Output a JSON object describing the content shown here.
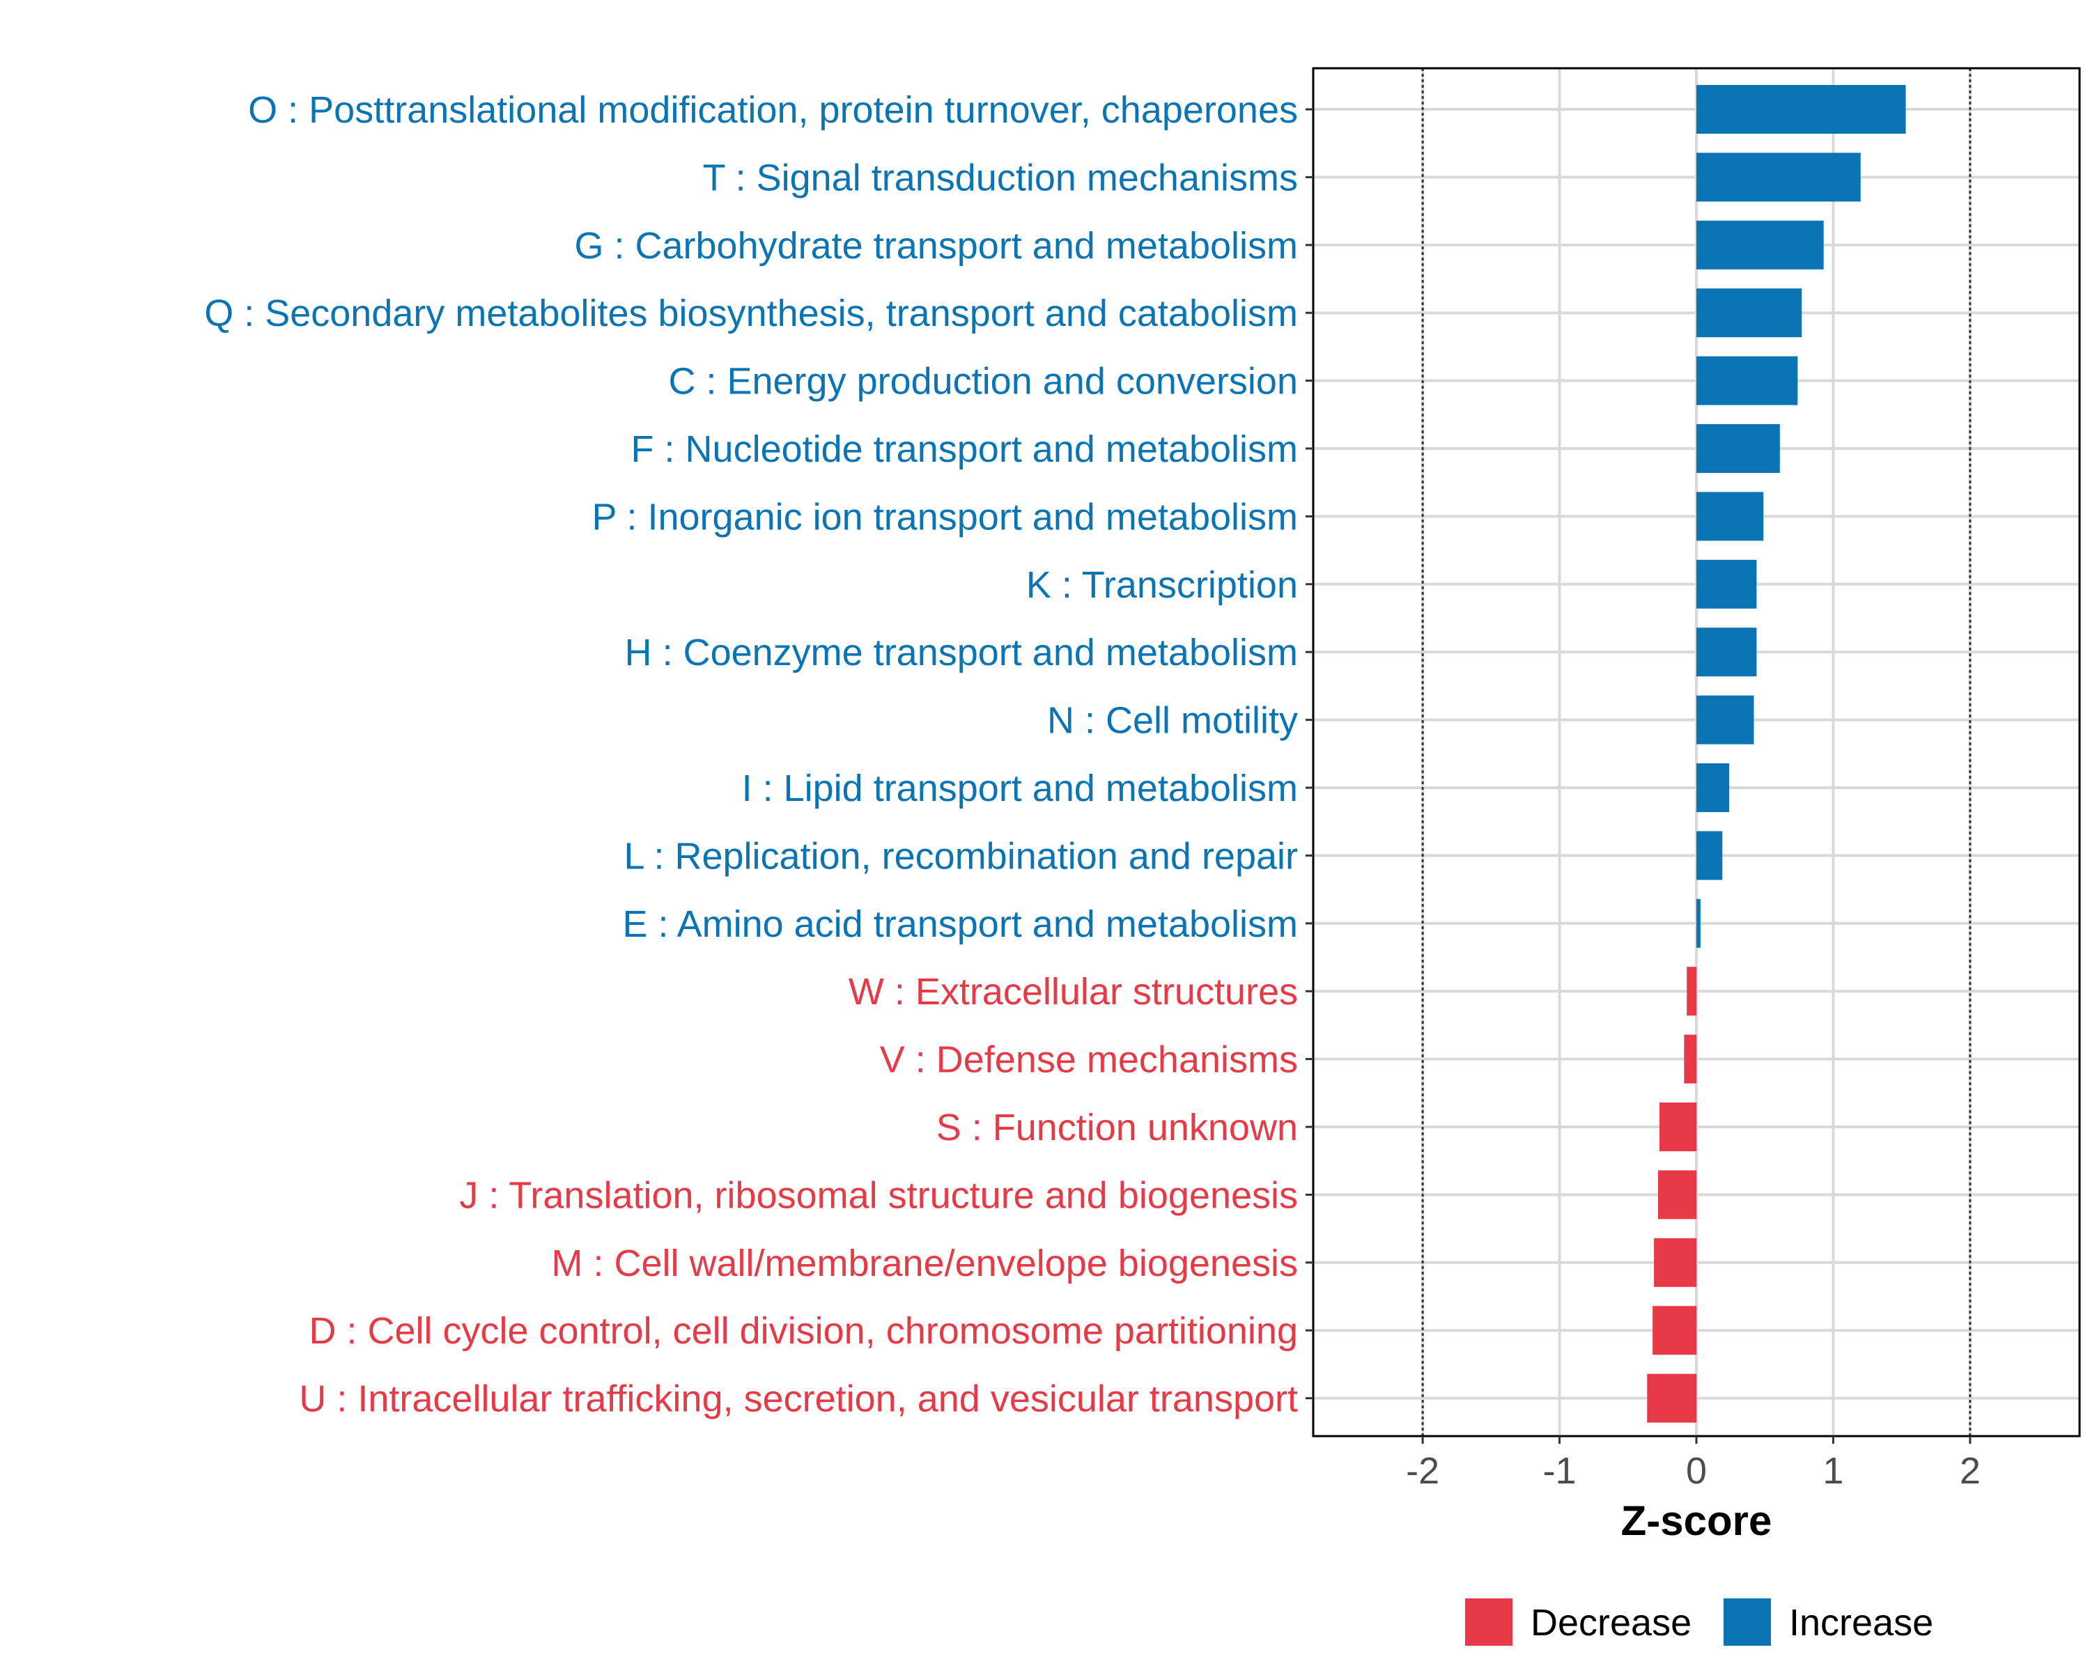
{
  "chart_data": {
    "type": "bar",
    "orientation": "horizontal",
    "xlabel": "Z-score",
    "xlim": [
      -2.8,
      2.8
    ],
    "xticks": [
      -2,
      -1,
      0,
      1,
      2
    ],
    "xtick_labels": [
      "-2",
      "-1",
      "0",
      "1",
      "2"
    ],
    "reference_lines": [
      -2,
      2
    ],
    "grid": true,
    "legend_position": "bottom",
    "legend": [
      {
        "key": "decrease",
        "label": "Decrease",
        "color": "#e63b47"
      },
      {
        "key": "increase",
        "label": "Increase",
        "color": "#0a74b4"
      }
    ],
    "categories": [
      {
        "label": "O : Posttranslational modification, protein turnover, chaperones",
        "value": 1.53,
        "direction": "increase"
      },
      {
        "label": "T : Signal transduction mechanisms",
        "value": 1.2,
        "direction": "increase"
      },
      {
        "label": "G : Carbohydrate transport and metabolism",
        "value": 0.93,
        "direction": "increase"
      },
      {
        "label": "Q : Secondary metabolites biosynthesis, transport and catabolism",
        "value": 0.77,
        "direction": "increase"
      },
      {
        "label": "C : Energy production and conversion",
        "value": 0.74,
        "direction": "increase"
      },
      {
        "label": "F : Nucleotide transport and metabolism",
        "value": 0.61,
        "direction": "increase"
      },
      {
        "label": "P : Inorganic ion transport and metabolism",
        "value": 0.49,
        "direction": "increase"
      },
      {
        "label": "K : Transcription",
        "value": 0.44,
        "direction": "increase"
      },
      {
        "label": "H : Coenzyme transport and metabolism",
        "value": 0.44,
        "direction": "increase"
      },
      {
        "label": "N : Cell motility",
        "value": 0.42,
        "direction": "increase"
      },
      {
        "label": "I : Lipid transport and metabolism",
        "value": 0.24,
        "direction": "increase"
      },
      {
        "label": "L : Replication, recombination and repair",
        "value": 0.19,
        "direction": "increase"
      },
      {
        "label": "E : Amino acid transport and metabolism",
        "value": 0.03,
        "direction": "increase"
      },
      {
        "label": "W : Extracellular structures",
        "value": -0.07,
        "direction": "decrease"
      },
      {
        "label": "V : Defense mechanisms",
        "value": -0.09,
        "direction": "decrease"
      },
      {
        "label": "S : Function unknown",
        "value": -0.27,
        "direction": "decrease"
      },
      {
        "label": "J : Translation, ribosomal structure and biogenesis",
        "value": -0.28,
        "direction": "decrease"
      },
      {
        "label": "M : Cell wall/membrane/envelope biogenesis",
        "value": -0.31,
        "direction": "decrease"
      },
      {
        "label": "D : Cell cycle control, cell division, chromosome partitioning",
        "value": -0.32,
        "direction": "decrease"
      },
      {
        "label": "U : Intracellular trafficking, secretion, and vesicular transport",
        "value": -0.36,
        "direction": "decrease"
      }
    ]
  }
}
